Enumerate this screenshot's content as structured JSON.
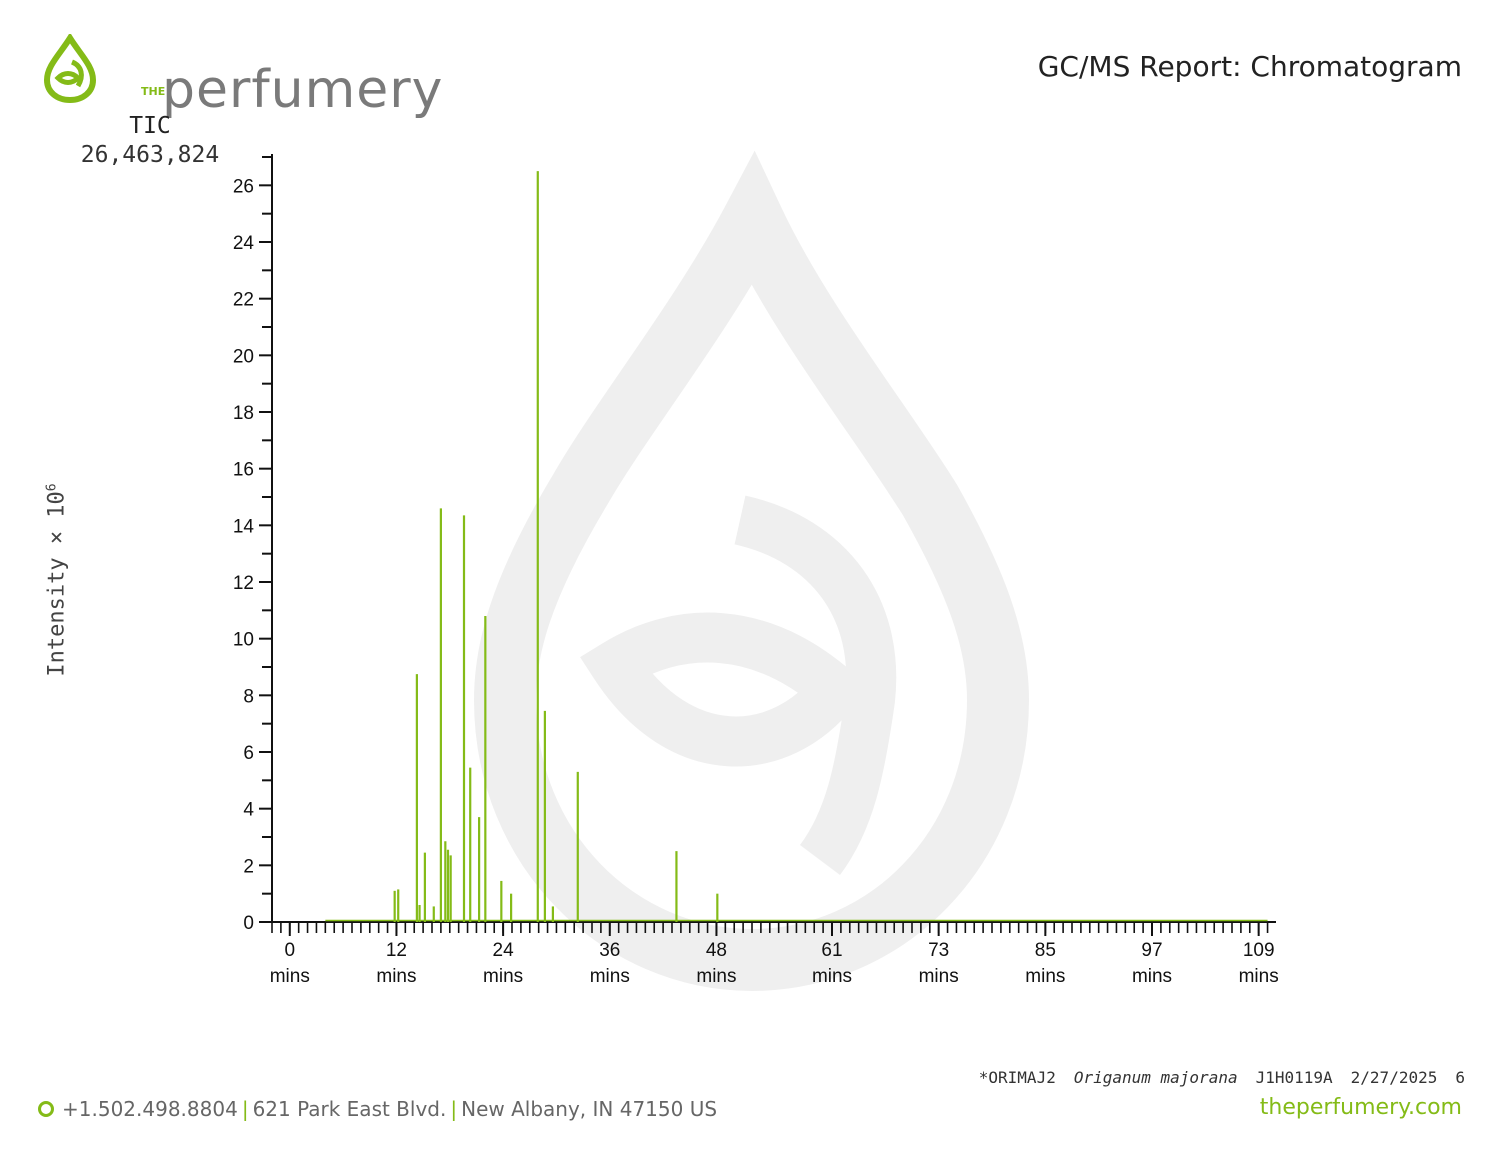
{
  "brand": {
    "the": "THE",
    "name": "perfumery",
    "accent": "#84bb17",
    "gray": "#7a7a7a"
  },
  "report_title": "GC/MS Report: Chromatogram",
  "tic": {
    "label": "TIC",
    "value": "26,463,824"
  },
  "chart_data": {
    "type": "line",
    "ylabel": "Intensity × 10",
    "ylabel_exponent": "6",
    "xunit": "mins",
    "xlim": [
      -2,
      110.5
    ],
    "ylim": [
      0,
      27
    ],
    "yticks": [
      0,
      2,
      4,
      6,
      8,
      10,
      12,
      14,
      16,
      18,
      20,
      22,
      24,
      26
    ],
    "xticks": [
      0,
      12,
      24,
      36,
      48,
      61,
      73,
      85,
      97,
      109
    ],
    "grid": false,
    "series": [
      {
        "color": "#84bb17",
        "peaks": [
          [
            11.8,
            1.1
          ],
          [
            12.2,
            1.15
          ],
          [
            14.3,
            8.75
          ],
          [
            14.6,
            0.6
          ],
          [
            15.2,
            2.45
          ],
          [
            16.2,
            0.55
          ],
          [
            17.0,
            14.6
          ],
          [
            17.5,
            2.85
          ],
          [
            17.8,
            2.55
          ],
          [
            18.1,
            2.35
          ],
          [
            19.6,
            14.35
          ],
          [
            20.3,
            5.45
          ],
          [
            21.3,
            3.7
          ],
          [
            22.0,
            10.8
          ],
          [
            23.8,
            1.45
          ],
          [
            24.9,
            1.0
          ],
          [
            27.9,
            26.5
          ],
          [
            28.7,
            7.45
          ],
          [
            29.6,
            0.55
          ],
          [
            32.4,
            5.3
          ],
          [
            43.5,
            2.5
          ],
          [
            48.1,
            1.0
          ]
        ]
      }
    ]
  },
  "meta": {
    "code": "*ORIMAJ2",
    "species": "Origanum majorana",
    "lot": "J1H0119A",
    "date": "2/27/2025",
    "page": "6"
  },
  "footer": {
    "phone": "+1.502.498.8804",
    "address": "621 Park East Blvd.",
    "city": "New Albany, IN 47150 US",
    "website": "theperfumery.com"
  }
}
